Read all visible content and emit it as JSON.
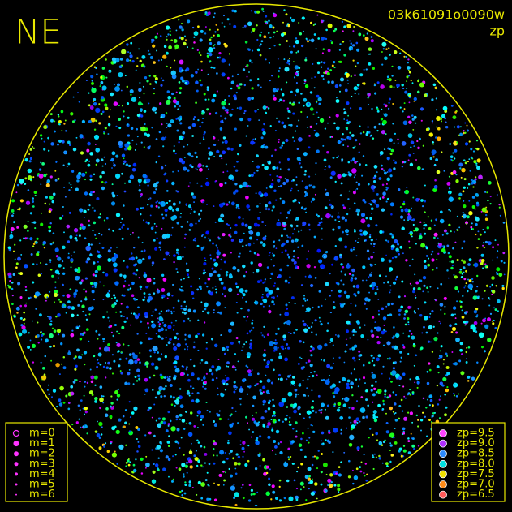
{
  "corner_label": "NE",
  "image_id": "03k61091o0090w",
  "metric_label": "zp",
  "magnitude_legend": [
    {
      "label": "m=0"
    },
    {
      "label": "m=1"
    },
    {
      "label": "m=2"
    },
    {
      "label": "m=3"
    },
    {
      "label": "m=4"
    },
    {
      "label": "m=5"
    },
    {
      "label": "m=6"
    }
  ],
  "magnitude_color": "#ff33ff",
  "zp_legend": [
    {
      "label": "zp=9.5",
      "color": "#ff44ff"
    },
    {
      "label": "zp=9.0",
      "color": "#b030ff"
    },
    {
      "label": "zp=8.5",
      "color": "#2e8cff"
    },
    {
      "label": "zp=8.0",
      "color": "#00e0e0"
    },
    {
      "label": "zp=7.5",
      "color": "#f0e000"
    },
    {
      "label": "zp=7.0",
      "color": "#ff8c1a"
    },
    {
      "label": "zp=6.5",
      "color": "#ff5a5a"
    }
  ]
}
